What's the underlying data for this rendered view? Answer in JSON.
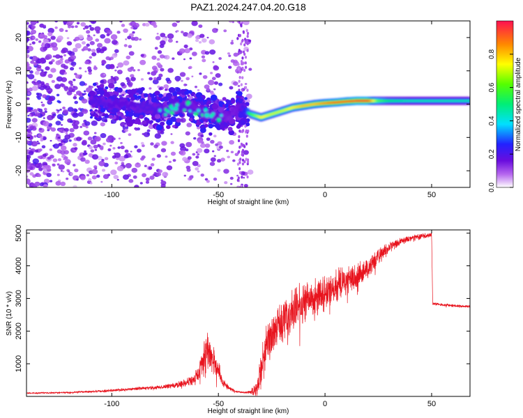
{
  "title": "PAZ1.2024.247.04.20.G18",
  "chart_data": [
    {
      "type": "heatmap",
      "xlabel": "Height of straight line (km)",
      "ylabel": "Frequency (Hz)",
      "xlim": [
        -140,
        68
      ],
      "ylim": [
        -25,
        25
      ],
      "xticks": [
        -100,
        -50,
        0,
        50
      ],
      "xtick_labels": [
        "-100",
        "-50",
        "0",
        "50"
      ],
      "yticks": [
        -20,
        -10,
        0,
        10,
        20
      ],
      "ytick_labels": [
        "-20",
        "-10",
        "0",
        "10",
        "20"
      ],
      "colorbar": {
        "label": "Normalized spectral amplitude",
        "range": [
          0,
          1
        ],
        "ticks": [
          0.0,
          0.2,
          0.4,
          0.6,
          0.8
        ],
        "tick_labels": [
          "0.0",
          "0.2",
          "0.4",
          "0.6",
          "0.8"
        ],
        "colormap": "rainbow (magenta-blue-cyan-green-yellow-red)"
      },
      "ridge": [
        {
          "x": -105,
          "freq": 0.5,
          "amp": 0.3
        },
        {
          "x": -95,
          "freq": 0.0,
          "amp": 0.28
        },
        {
          "x": -85,
          "freq": -1.0,
          "amp": 0.3
        },
        {
          "x": -75,
          "freq": -2.0,
          "amp": 0.32
        },
        {
          "x": -65,
          "freq": -0.5,
          "amp": 0.3
        },
        {
          "x": -60,
          "freq": -2.0,
          "amp": 0.3
        },
        {
          "x": -55,
          "freq": -3.0,
          "amp": 0.28
        },
        {
          "x": -50,
          "freq": -3.5,
          "amp": 0.26
        },
        {
          "x": -45,
          "freq": -4.0,
          "amp": 0.22
        },
        {
          "x": -40,
          "freq": -1.0,
          "amp": 0.25
        },
        {
          "x": -35,
          "freq": -3.0,
          "amp": 0.55
        },
        {
          "x": -30,
          "freq": -4.0,
          "amp": 0.75
        },
        {
          "x": -25,
          "freq": -3.0,
          "amp": 0.7
        },
        {
          "x": -20,
          "freq": -2.0,
          "amp": 0.7
        },
        {
          "x": -15,
          "freq": -1.0,
          "amp": 0.75
        },
        {
          "x": -10,
          "freq": -0.5,
          "amp": 0.8
        },
        {
          "x": -5,
          "freq": 0.0,
          "amp": 0.8
        },
        {
          "x": 0,
          "freq": 0.3,
          "amp": 0.85
        },
        {
          "x": 5,
          "freq": 0.5,
          "amp": 0.9
        },
        {
          "x": 10,
          "freq": 0.8,
          "amp": 0.9
        },
        {
          "x": 15,
          "freq": 1.0,
          "amp": 0.95
        },
        {
          "x": 20,
          "freq": 1.0,
          "amp": 0.95
        },
        {
          "x": 25,
          "freq": 1.0,
          "amp": 0.6
        },
        {
          "x": 30,
          "freq": 1.0,
          "amp": 0.5
        },
        {
          "x": 40,
          "freq": 1.0,
          "amp": 0.45
        },
        {
          "x": 50,
          "freq": 1.0,
          "amp": 0.45
        },
        {
          "x": 60,
          "freq": 1.0,
          "amp": 0.45
        },
        {
          "x": 68,
          "freq": 1.0,
          "amp": 0.45
        }
      ],
      "scatter_region": {
        "x_range": [
          -140,
          -35
        ],
        "freq_range": [
          -25,
          25
        ],
        "amp": 0.15
      }
    },
    {
      "type": "line",
      "xlabel": "Height of straight line (km)",
      "ylabel": "SNR (10 * v/v)",
      "xlim": [
        -140,
        68
      ],
      "ylim": [
        0,
        5100
      ],
      "xticks": [
        -100,
        -50,
        0,
        50
      ],
      "xtick_labels": [
        "-100",
        "-50",
        "0",
        "50"
      ],
      "yticks": [
        1000,
        2000,
        3000,
        4000,
        5000
      ],
      "ytick_labels": [
        "1000",
        "2000",
        "3000",
        "4000",
        "5000"
      ],
      "color": "#e8141e",
      "series": [
        {
          "x": [
            -140,
            -120,
            -100,
            -90,
            -80,
            -75,
            -70,
            -65,
            -60,
            -57,
            -55,
            -53,
            -50,
            -48,
            -45,
            -42,
            -38,
            -35,
            -32,
            -30,
            -28,
            -25,
            -22,
            -20,
            -15,
            -10,
            -5,
            0,
            5,
            10,
            15,
            20,
            25,
            30,
            35,
            40,
            45,
            50,
            50.5,
            55,
            60,
            68
          ],
          "y": [
            100,
            120,
            180,
            230,
            270,
            300,
            350,
            400,
            600,
            1100,
            1500,
            1200,
            800,
            450,
            250,
            150,
            120,
            130,
            250,
            800,
            1500,
            1900,
            2100,
            2300,
            2600,
            2900,
            3000,
            3200,
            3400,
            3600,
            3700,
            3900,
            4300,
            4550,
            4750,
            4850,
            4900,
            4950,
            2850,
            2800,
            2780,
            2750
          ],
          "noise": [
            20,
            30,
            45,
            55,
            65,
            80,
            100,
            140,
            300,
            700,
            800,
            600,
            350,
            180,
            80,
            40,
            30,
            60,
            350,
            700,
            800,
            650,
            700,
            750,
            750,
            700,
            700,
            650,
            600,
            550,
            450,
            350,
            300,
            200,
            150,
            120,
            100,
            100,
            60,
            50,
            50,
            50
          ]
        }
      ]
    }
  ]
}
